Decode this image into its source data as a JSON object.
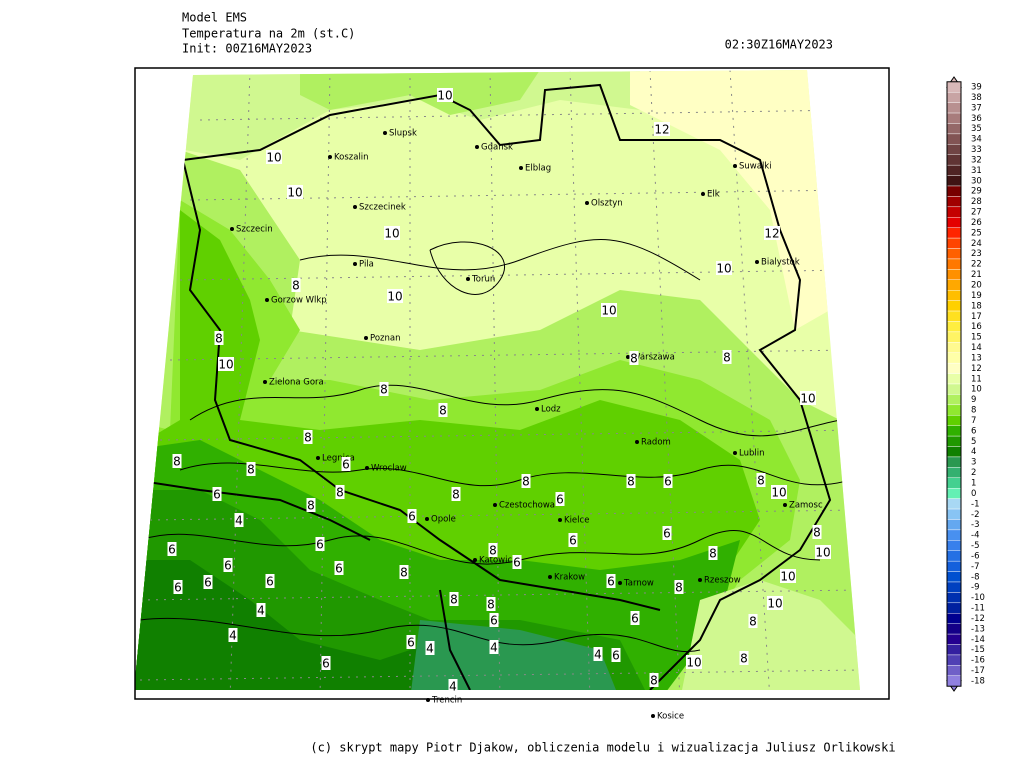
{
  "header": {
    "model": "Model EMS",
    "field": "Temperatura na 2m (st.C)",
    "init": "Init: 00Z16MAY2023",
    "valid": "02:30Z16MAY2023"
  },
  "cities": [
    "Slupsk",
    "Gdansk",
    "Koszalin",
    "Elblag",
    "Suwalki",
    "Szczecinek",
    "Olsztyn",
    "Elk",
    "Szczecin",
    "Bialystok",
    "Pila",
    "Torun",
    "Gorzow Wlkp",
    "Poznan",
    "Warszawa",
    "Zielona Gora",
    "Lodz",
    "Radom",
    "Lublin",
    "Legnica",
    "Wroclaw",
    "Czestochowa",
    "Opole",
    "Zamosc",
    "Kielce",
    "Katowice",
    "Krakow",
    "Tarnow",
    "Rzeszow",
    "Trencin",
    "Kosice"
  ],
  "contour_labels": [
    10,
    12,
    10,
    10,
    10,
    12,
    10,
    8,
    10,
    10,
    8,
    10,
    8,
    8,
    8,
    10,
    8,
    8,
    8,
    8,
    6,
    6,
    8,
    8,
    8,
    8,
    6,
    8,
    10,
    4,
    8,
    6,
    6,
    6,
    6,
    8,
    6,
    6,
    6,
    8,
    8,
    10,
    6,
    6,
    8,
    6,
    6,
    6,
    6,
    8,
    10,
    8,
    8,
    4,
    6,
    6,
    10,
    8,
    4,
    6,
    4,
    4,
    4,
    6,
    6,
    10,
    8,
    8,
    4
  ],
  "legend": {
    "levels": [
      39,
      38,
      37,
      36,
      35,
      34,
      33,
      32,
      31,
      30,
      29,
      28,
      27,
      26,
      25,
      24,
      23,
      22,
      21,
      20,
      19,
      18,
      17,
      16,
      15,
      14,
      13,
      12,
      11,
      10,
      9,
      8,
      7,
      6,
      5,
      4,
      3,
      2,
      1,
      0,
      -1,
      -2,
      -3,
      -4,
      -5,
      -6,
      -7,
      -8,
      -9,
      -10,
      -11,
      -12,
      -13,
      -14,
      -15,
      -16,
      -17,
      -18
    ],
    "colors": [
      "#d8b8b8",
      "#c8a4a4",
      "#b89090",
      "#a87c7c",
      "#946868",
      "#825454",
      "#704444",
      "#603434",
      "#502424",
      "#401414",
      "#780000",
      "#a00000",
      "#c40000",
      "#e40000",
      "#ff2400",
      "#ff4400",
      "#ff6000",
      "#ff7800",
      "#ff9000",
      "#ffa800",
      "#ffbe00",
      "#ffd000",
      "#ffe020",
      "#ffee40",
      "#fff464",
      "#fffa90",
      "#ffffa8",
      "#ffffc4",
      "#e8ffa8",
      "#d0f890",
      "#b0f060",
      "#90e830",
      "#60d000",
      "#30b000",
      "#209800",
      "#108000",
      "#2a9850",
      "#34b070",
      "#44d090",
      "#64f0b4",
      "#a8d8f4",
      "#88c4f4",
      "#64a8f0",
      "#4890f0",
      "#3880ec",
      "#2470e4",
      "#1460dc",
      "#0050d0",
      "#0040c0",
      "#0030b0",
      "#0020a0",
      "#000090",
      "#140088",
      "#240090",
      "#3420a0",
      "#5040b4",
      "#7060c8",
      "#9080e0"
    ]
  },
  "footer": "(c) skrypt mapy Piotr Djakow, obliczenia modelu i wizualizacja Juliusz Orlikowski"
}
